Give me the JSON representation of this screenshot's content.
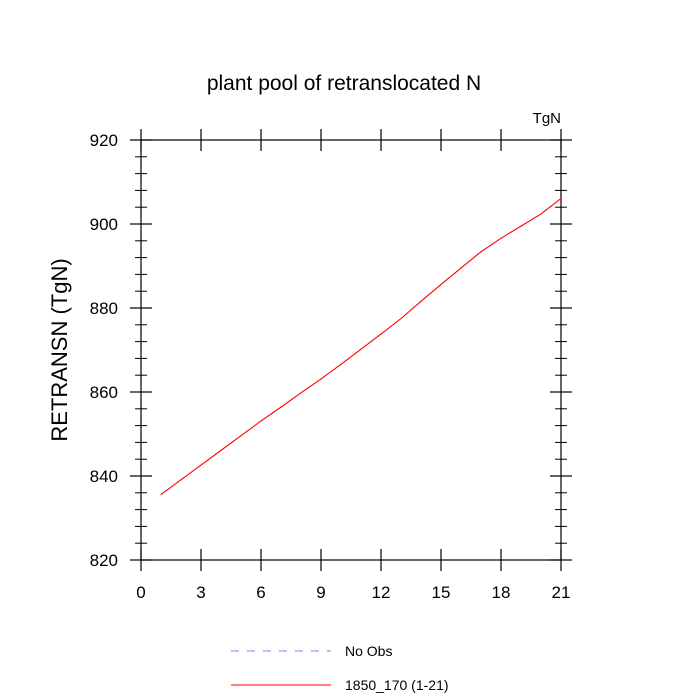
{
  "chart_data": {
    "type": "line",
    "title": "plant pool of retranslocated N",
    "units_label": "TgN",
    "xlabel": "",
    "ylabel": "RETRANSN  (TgN)",
    "xlim": [
      0,
      21
    ],
    "ylim": [
      820,
      920
    ],
    "x_ticks": [
      "0",
      "3",
      "6",
      "9",
      "12",
      "15",
      "18",
      "21"
    ],
    "y_ticks": [
      "820",
      "840",
      "860",
      "880",
      "900",
      "920"
    ],
    "grid": false,
    "legend_position": "bottom",
    "series": [
      {
        "name": "1850_170 (1-21)",
        "color": "#ff0000",
        "line_style": "solid",
        "x": [
          1,
          2,
          3,
          4,
          5,
          6,
          7,
          8,
          9,
          10,
          11,
          12,
          13,
          14,
          15,
          16,
          17,
          18,
          19,
          20,
          21
        ],
        "y": [
          835.6,
          839.1,
          842.6,
          846.1,
          849.6,
          853.1,
          856.4,
          859.8,
          863.1,
          866.6,
          870.2,
          873.8,
          877.5,
          881.6,
          885.6,
          889.5,
          893.4,
          896.6,
          899.5,
          902.4,
          906.1
        ]
      }
    ],
    "legend": [
      {
        "label": "No Obs",
        "color": "#8080ff",
        "line_style": "dashed"
      },
      {
        "label": "1850_170 (1-21)",
        "color": "#ff0000",
        "line_style": "solid"
      }
    ]
  }
}
